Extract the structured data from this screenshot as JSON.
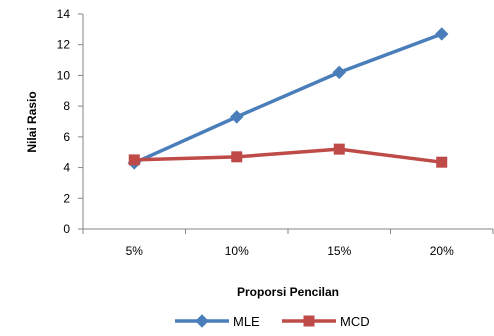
{
  "chart_data": {
    "type": "line",
    "title": "",
    "xlabel": "Proporsi Pencilan",
    "ylabel": "Nilai Rasio",
    "categories": [
      "5%",
      "10%",
      "15%",
      "20%"
    ],
    "ylim": [
      0,
      14
    ],
    "yticks": [
      0,
      2,
      4,
      6,
      8,
      10,
      12,
      14
    ],
    "grid": false,
    "legend_position": "bottom",
    "series": [
      {
        "name": "MLE",
        "color": "#4A7EBB",
        "marker": "diamond",
        "values": [
          4.3,
          7.3,
          10.2,
          12.7
        ]
      },
      {
        "name": "MCD",
        "color": "#BE4B48",
        "marker": "square",
        "values": [
          4.5,
          4.7,
          5.2,
          4.35
        ]
      }
    ]
  }
}
